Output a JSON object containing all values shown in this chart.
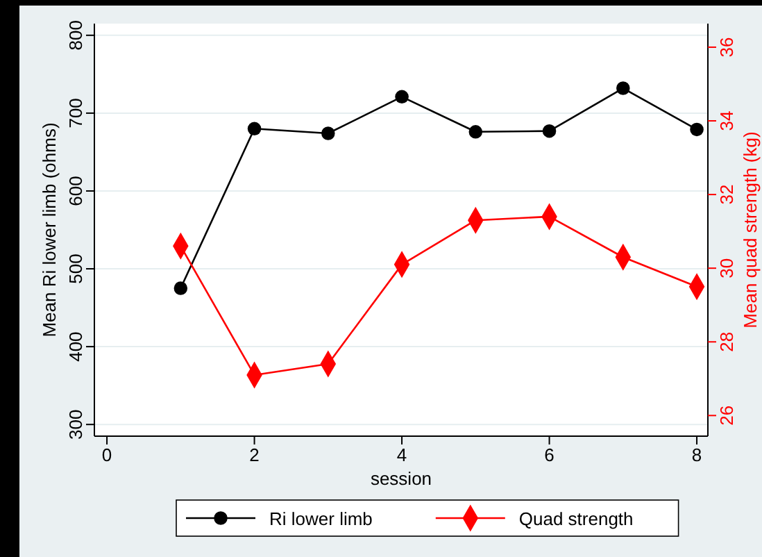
{
  "chart_data": {
    "type": "line",
    "xlabel": "session",
    "ylabel": "Mean Ri lower limb (ohms)",
    "y2label": "Mean quad strength (kg)",
    "x": [
      1,
      2,
      3,
      4,
      5,
      6,
      7,
      8
    ],
    "series": [
      {
        "name": "Ri lower limb",
        "color": "#000000",
        "marker": "circle",
        "values": [
          475,
          680,
          674,
          721,
          676,
          677,
          732,
          679
        ]
      },
      {
        "name": "Quad strength",
        "color": "#ff0000",
        "marker": "diamond",
        "axis": "y2",
        "values": [
          30.6,
          27.1,
          27.4,
          30.1,
          31.3,
          31.4,
          30.3,
          29.5
        ]
      }
    ],
    "xlim": [
      -0.17,
      8.15
    ],
    "xticks": [
      0,
      2,
      4,
      6,
      8
    ],
    "ylim": [
      285,
      815
    ],
    "yticks": [
      300,
      400,
      500,
      600,
      700,
      800
    ],
    "y2lim": [
      25.44,
      36.64
    ],
    "y2ticks": [
      26,
      28,
      30,
      32,
      34,
      36
    ],
    "grid": "y",
    "legend": "bottom"
  }
}
